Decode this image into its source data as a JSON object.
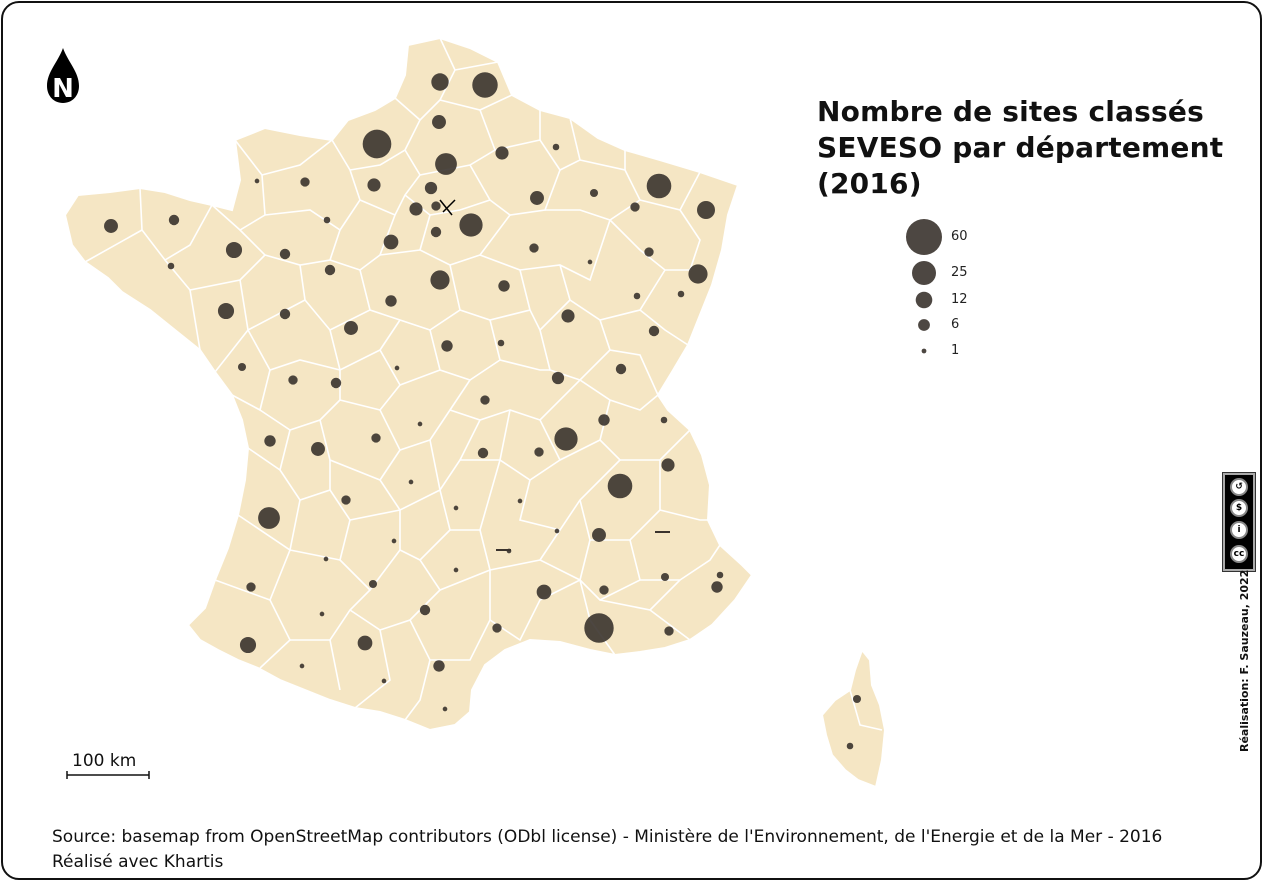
{
  "title": "Nombre de sites classés SEVESO par département (2016)",
  "north_letter": "N",
  "legend": {
    "items": [
      {
        "value": 60,
        "label": "60"
      },
      {
        "value": 25,
        "label": "25"
      },
      {
        "value": 12,
        "label": "12"
      },
      {
        "value": 6,
        "label": "6"
      },
      {
        "value": 1,
        "label": "1"
      }
    ]
  },
  "scale_bar": {
    "label": "100 km"
  },
  "source_line1": "Source: basemap from OpenStreetMap contributors (ODbl license) - Ministère de l'Environnement, de l'Energie et de la Mer - 2016",
  "source_line2": "Réalisé avec Khartis",
  "credit": "Réalisation: F. Sauzeau, 2022",
  "license": {
    "icon": "cc-by-nc-sa-icon",
    "labels": [
      "BY",
      "NC",
      "SA"
    ]
  },
  "colors": {
    "land": "#f5e6c4",
    "border": "#ffffff",
    "bubble": "#3a332d",
    "frame": "#111111"
  },
  "map_data": {
    "symbol": "proportional-circle",
    "values": [
      {
        "name": "finistere",
        "value": 9
      },
      {
        "name": "cotes-d-armor",
        "value": 5
      },
      {
        "name": "morbihan",
        "value": 2
      },
      {
        "name": "ille-et-vilaine",
        "value": 12
      },
      {
        "name": "loire-atlantique",
        "value": 12
      },
      {
        "name": "manche",
        "value": 1
      },
      {
        "name": "calvados",
        "value": 4
      },
      {
        "name": "orne",
        "value": 2
      },
      {
        "name": "mayenne",
        "value": 5
      },
      {
        "name": "sarthe",
        "value": 5
      },
      {
        "name": "maine-et-loire",
        "value": 5
      },
      {
        "name": "vendee",
        "value": 3
      },
      {
        "name": "seine-maritime",
        "value": 38
      },
      {
        "name": "eure",
        "value": 8
      },
      {
        "name": "nord",
        "value": 30
      },
      {
        "name": "pas-de-calais",
        "value": 14
      },
      {
        "name": "somme",
        "value": 9
      },
      {
        "name": "oise",
        "value": 22
      },
      {
        "name": "aisne",
        "value": 8
      },
      {
        "name": "val-d-oise",
        "value": 7
      },
      {
        "name": "yvelines",
        "value": 8
      },
      {
        "name": "paris-petite-couronne",
        "value": 4
      },
      {
        "name": "seine-et-marne",
        "value": 25
      },
      {
        "name": "essonne",
        "value": 5
      },
      {
        "name": "eure-et-loir",
        "value": 10
      },
      {
        "name": "loiret",
        "value": 17
      },
      {
        "name": "loir-et-cher",
        "value": 6
      },
      {
        "name": "indre-et-loire",
        "value": 9
      },
      {
        "name": "marne",
        "value": 9
      },
      {
        "name": "ardennes",
        "value": 2
      },
      {
        "name": "meuse",
        "value": 3
      },
      {
        "name": "moselle",
        "value": 28
      },
      {
        "name": "bas-rhin",
        "value": 15
      },
      {
        "name": "haut-rhin",
        "value": 17
      },
      {
        "name": "meurthe-et-moselle",
        "value": 4
      },
      {
        "name": "vosges",
        "value": 4
      },
      {
        "name": "aube",
        "value": 4
      },
      {
        "name": "haute-marne",
        "value": 1
      },
      {
        "name": "yonne",
        "value": 6
      },
      {
        "name": "cote-d-or",
        "value": 8
      },
      {
        "name": "haute-saone",
        "value": 2
      },
      {
        "name": "territoire-de-belfort",
        "value": 2
      },
      {
        "name": "doubs",
        "value": 5
      },
      {
        "name": "jura",
        "value": 5
      },
      {
        "name": "nievre",
        "value": 4
      },
      {
        "name": "saone-et-loire",
        "value": 7
      },
      {
        "name": "cher",
        "value": 2
      },
      {
        "name": "indre",
        "value": 1
      },
      {
        "name": "allier",
        "value": 5
      },
      {
        "name": "deux-sevres",
        "value": 4
      },
      {
        "name": "vienne",
        "value": 5
      },
      {
        "name": "charente-maritime",
        "value": 6
      },
      {
        "name": "charente",
        "value": 9
      },
      {
        "name": "haute-vienne",
        "value": 4
      },
      {
        "name": "creuse",
        "value": 1
      },
      {
        "name": "puy-de-dome",
        "value": 6
      },
      {
        "name": "loire",
        "value": 4
      },
      {
        "name": "rhone",
        "value": 25
      },
      {
        "name": "ain",
        "value": 6
      },
      {
        "name": "haute-savoie",
        "value": 2
      },
      {
        "name": "savoie",
        "value": 8
      },
      {
        "name": "isere",
        "value": 28
      },
      {
        "name": "gironde",
        "value": 22
      },
      {
        "name": "dordogne",
        "value": 4
      },
      {
        "name": "correze",
        "value": 1
      },
      {
        "name": "cantal",
        "value": 1
      },
      {
        "name": "haute-loire",
        "value": 1
      },
      {
        "name": "ardeche",
        "value": 1
      },
      {
        "name": "drome",
        "value": 9
      },
      {
        "name": "lot",
        "value": 1
      },
      {
        "name": "lot-et-garonne",
        "value": 1
      },
      {
        "name": "landes",
        "value": 4
      },
      {
        "name": "tarn-et-garonne",
        "value": 3
      },
      {
        "name": "aveyron",
        "value": 1
      },
      {
        "name": "lozere",
        "value": 1
      },
      {
        "name": "gard",
        "value": 10
      },
      {
        "name": "vaucluse",
        "value": 4
      },
      {
        "name": "hautes-alpes",
        "value": 2
      },
      {
        "name": "alpes-de-haute-provence",
        "value": 3
      },
      {
        "name": "alpes-maritimes",
        "value": 6
      },
      {
        "name": "bouches-du-rhone",
        "value": 40
      },
      {
        "name": "var",
        "value": 4
      },
      {
        "name": "herault",
        "value": 4
      },
      {
        "name": "tarn",
        "value": 5
      },
      {
        "name": "gers",
        "value": 1
      },
      {
        "name": "haute-garonne",
        "value": 10
      },
      {
        "name": "pyrenees-atlantiques",
        "value": 12
      },
      {
        "name": "hautes-pyrenees",
        "value": 1
      },
      {
        "name": "ariege",
        "value": 1
      },
      {
        "name": "aude",
        "value": 6
      },
      {
        "name": "pyrenees-orientales",
        "value": 1
      },
      {
        "name": "haute-corse",
        "value": 3
      },
      {
        "name": "corse-du-sud",
        "value": 2
      }
    ]
  }
}
